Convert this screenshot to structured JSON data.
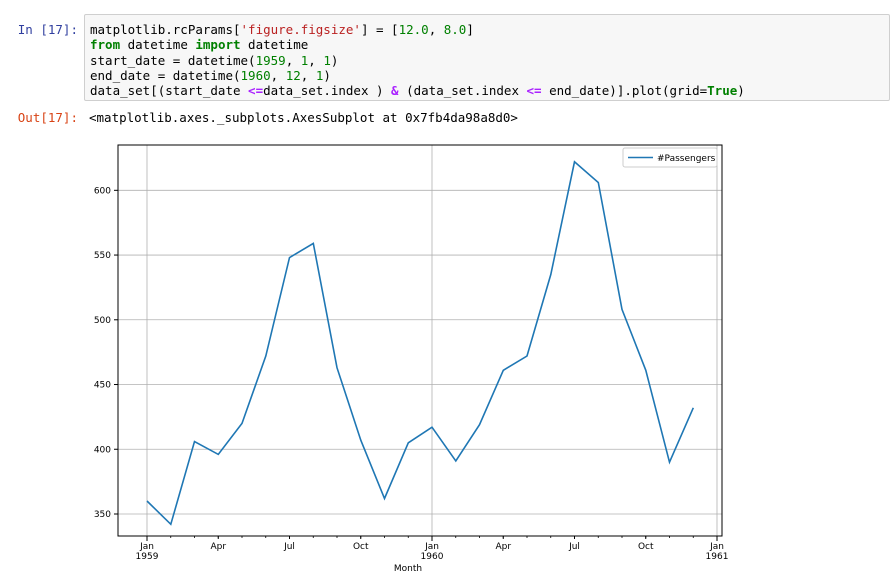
{
  "cell": {
    "in_prompt": "In [17]:",
    "out_prompt": "Out[17]:",
    "output_text": "<matplotlib.axes._subplots.AxesSubplot at 0x7fb4da98a8d0>",
    "code_lines": [
      [
        {
          "t": "matplotlib.rcParams[",
          "c": ""
        },
        {
          "t": "'figure.figsize'",
          "c": "str"
        },
        {
          "t": "] = [",
          "c": ""
        },
        {
          "t": "12.0",
          "c": "num"
        },
        {
          "t": ", ",
          "c": ""
        },
        {
          "t": "8.0",
          "c": "num"
        },
        {
          "t": "]",
          "c": ""
        }
      ],
      [
        {
          "t": "from",
          "c": "kw"
        },
        {
          "t": " datetime ",
          "c": ""
        },
        {
          "t": "import",
          "c": "kw"
        },
        {
          "t": " datetime",
          "c": ""
        }
      ],
      [
        {
          "t": "start_date = datetime(",
          "c": ""
        },
        {
          "t": "1959",
          "c": "num"
        },
        {
          "t": ", ",
          "c": ""
        },
        {
          "t": "1",
          "c": "num"
        },
        {
          "t": ", ",
          "c": ""
        },
        {
          "t": "1",
          "c": "num"
        },
        {
          "t": ")",
          "c": ""
        }
      ],
      [
        {
          "t": "end_date = datetime(",
          "c": ""
        },
        {
          "t": "1960",
          "c": "num"
        },
        {
          "t": ", ",
          "c": ""
        },
        {
          "t": "12",
          "c": "num"
        },
        {
          "t": ", ",
          "c": ""
        },
        {
          "t": "1",
          "c": "num"
        },
        {
          "t": ")",
          "c": ""
        }
      ],
      [
        {
          "t": "data_set[(start_date ",
          "c": ""
        },
        {
          "t": "<=",
          "c": "op"
        },
        {
          "t": "data_set.index ) ",
          "c": ""
        },
        {
          "t": "&",
          "c": "op"
        },
        {
          "t": " (data_set.index ",
          "c": ""
        },
        {
          "t": "<=",
          "c": "op"
        },
        {
          "t": " end_date)].plot(grid=",
          "c": ""
        },
        {
          "t": "True",
          "c": "kw"
        },
        {
          "t": ")",
          "c": ""
        }
      ]
    ]
  },
  "chart_data": {
    "type": "line",
    "xlabel": "Month",
    "ylabel": "",
    "ylim": [
      333,
      635
    ],
    "grid": true,
    "legend": "top-right",
    "x": [
      "1959-01",
      "1959-02",
      "1959-03",
      "1959-04",
      "1959-05",
      "1959-06",
      "1959-07",
      "1959-08",
      "1959-09",
      "1959-10",
      "1959-11",
      "1959-12",
      "1960-01",
      "1960-02",
      "1960-03",
      "1960-04",
      "1960-05",
      "1960-06",
      "1960-07",
      "1960-08",
      "1960-09",
      "1960-10",
      "1960-11",
      "1960-12"
    ],
    "series": [
      {
        "name": "#Passengers",
        "color": "#1f77b4",
        "values": [
          360,
          342,
          406,
          396,
          420,
          472,
          548,
          559,
          463,
          407,
          362,
          405,
          417,
          391,
          419,
          461,
          472,
          535,
          622,
          606,
          508,
          461,
          390,
          432
        ]
      }
    ],
    "yticks": [
      350,
      400,
      450,
      500,
      550,
      600
    ],
    "xticks": [
      {
        "x": "1959-01",
        "label": "Jan",
        "sub": "1959",
        "major": true
      },
      {
        "x": "1959-04",
        "label": "Apr",
        "sub": "",
        "major": false
      },
      {
        "x": "1959-07",
        "label": "Jul",
        "sub": "",
        "major": false
      },
      {
        "x": "1959-10",
        "label": "Oct",
        "sub": "",
        "major": false
      },
      {
        "x": "1960-01",
        "label": "Jan",
        "sub": "1960",
        "major": true
      },
      {
        "x": "1960-04",
        "label": "Apr",
        "sub": "",
        "major": false
      },
      {
        "x": "1960-07",
        "label": "Jul",
        "sub": "",
        "major": false
      },
      {
        "x": "1960-10",
        "label": "Oct",
        "sub": "",
        "major": false
      },
      {
        "x": "1961-01",
        "label": "Jan",
        "sub": "1961",
        "major": true
      }
    ]
  }
}
